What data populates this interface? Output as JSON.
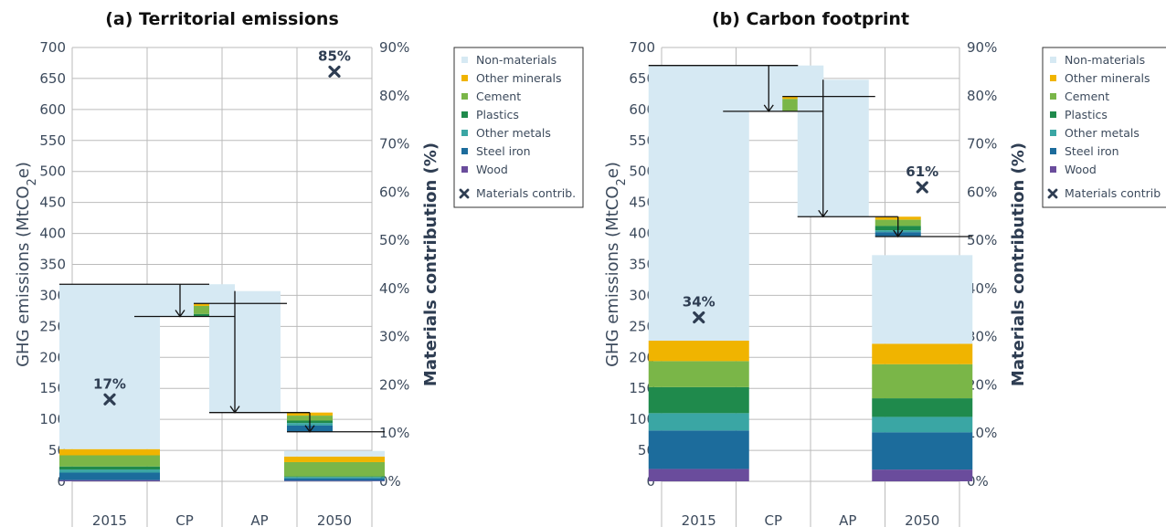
{
  "chart_data": [
    {
      "type": "waterfall",
      "title": "(a) Territorial emissions",
      "ylabel": "GHG emissions (MtCO",
      "ylabel_sub": "2",
      "ylabel_end": "e)",
      "ylabel_right": "Materials contribution (%)",
      "ylim": [
        0,
        700
      ],
      "ylim_right": [
        0,
        90
      ],
      "y_ticks": [
        "0",
        "50",
        "100",
        "150",
        "200",
        "250",
        "300",
        "350",
        "400",
        "450",
        "500",
        "550",
        "600",
        "650",
        "700"
      ],
      "y_right_ticks": [
        "0%",
        "10%",
        "20%",
        "30%",
        "40%",
        "50%",
        "60%",
        "70%",
        "80%",
        "90%"
      ],
      "grid": true,
      "categories": [
        "2015",
        "CP",
        "AP",
        "2050"
      ],
      "stack_2015": {
        "Wood": 2,
        "Steel iron": 12,
        "Other metals": 5,
        "Plastics": 5,
        "Cement": 18,
        "Other minerals": 10,
        "Non-materials": 266
      },
      "stack_2050": {
        "Wood": 1,
        "Steel iron": 4,
        "Other metals": 2,
        "Plastics": 1,
        "Cement": 23,
        "Other minerals": 9,
        "Non-materials": 9
      },
      "cp_step": {
        "from": 318,
        "to": 287
      },
      "cp_materials_change": {
        "Plastics": 4,
        "Cement": 13,
        "Other minerals": 4
      },
      "ap_step": {
        "from": 307,
        "to": 80
      },
      "ap_materials_change": {
        "Other minerals": 5,
        "Cement": 8,
        "Plastics": 4,
        "Other metals": 4,
        "Steel iron": 10
      },
      "materials_contribution": [
        {
          "category": "2015",
          "value": 17,
          "label": "17%"
        },
        {
          "category": "2050",
          "value": 85,
          "label": "85%"
        }
      ]
    },
    {
      "type": "waterfall",
      "title": "(b) Carbon footprint",
      "ylabel": "GHG emissions (MtCO",
      "ylabel_sub": "2",
      "ylabel_end": "e)",
      "ylabel_right": "Materials contribution (%)",
      "ylim": [
        0,
        700
      ],
      "ylim_right": [
        0,
        90
      ],
      "y_ticks": [
        "0",
        "50",
        "100",
        "150",
        "200",
        "250",
        "300",
        "350",
        "400",
        "450",
        "500",
        "550",
        "600",
        "650",
        "700"
      ],
      "y_right_ticks": [
        "0%",
        "10%",
        "20%",
        "30%",
        "40%",
        "50%",
        "60%",
        "70%",
        "80%",
        "90%"
      ],
      "grid": true,
      "categories": [
        "2015",
        "CP",
        "AP",
        "2050"
      ],
      "stack_2015": {
        "Wood": 20,
        "Steel iron": 62,
        "Other metals": 28,
        "Plastics": 42,
        "Cement": 42,
        "Other minerals": 33,
        "Non-materials": 444
      },
      "stack_2050": {
        "Wood": 19,
        "Steel iron": 60,
        "Other metals": 25,
        "Plastics": 30,
        "Cement": 55,
        "Other minerals": 33,
        "Non-materials": 143
      },
      "cp_step": {
        "from": 671,
        "to": 621
      },
      "cp_materials_change": {
        "Cement": 20,
        "Other minerals": 4
      },
      "ap_step": {
        "from": 648,
        "to": 395
      },
      "ap_materials_change": {
        "Other minerals": 5,
        "Cement": 10,
        "Plastics": 7,
        "Other metals": 3,
        "Steel iron": 7
      },
      "materials_contribution": [
        {
          "category": "2015",
          "value": 34,
          "label": "34%"
        },
        {
          "category": "2050",
          "value": 61,
          "label": "61%"
        }
      ]
    }
  ],
  "legend": {
    "placement": "right",
    "items": [
      {
        "label": "Non-materials",
        "color": "#d6e9f3"
      },
      {
        "label": "Other minerals",
        "color": "#f0b400"
      },
      {
        "label": "Cement",
        "color": "#7ab648"
      },
      {
        "label": "Plastics",
        "color": "#1f8a4c"
      },
      {
        "label": "Other metals",
        "color": "#3aa6a4"
      },
      {
        "label": "Steel iron",
        "color": "#1c6c9c"
      },
      {
        "label": "Wood",
        "color": "#6a4c9c"
      }
    ],
    "marker_labels": [
      "Materials contrib.",
      "Materials contrib"
    ]
  }
}
